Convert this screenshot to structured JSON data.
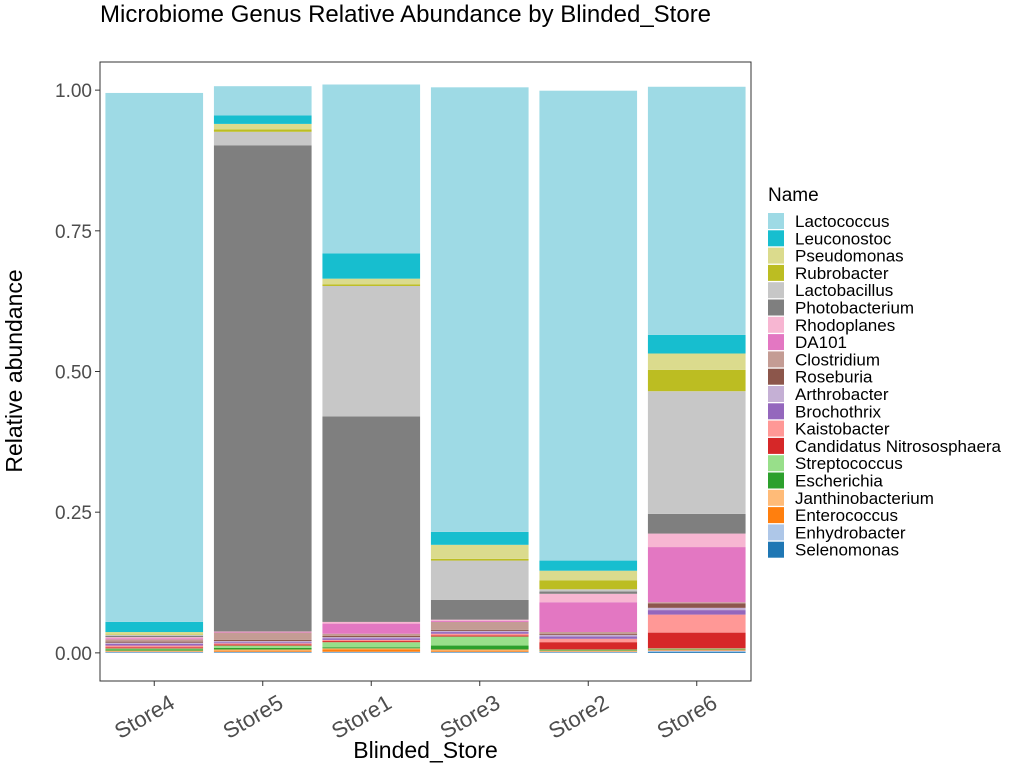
{
  "chart_data": {
    "type": "bar",
    "stacked": true,
    "title": "Microbiome Genus Relative Abundance by Blinded_Store",
    "xlabel": "Blinded_Store",
    "ylabel": "Relative abundance",
    "ylim": [
      -0.05,
      1.05
    ],
    "yticks": [
      0.0,
      0.25,
      0.5,
      0.75,
      1.0
    ],
    "ytick_labels": [
      "0.00",
      "0.25",
      "0.50",
      "0.75",
      "1.00"
    ],
    "grid": false,
    "legend": {
      "title": "Name",
      "position": "right"
    },
    "categories": [
      "Store4",
      "Store5",
      "Store1",
      "Store3",
      "Store2",
      "Store6"
    ],
    "series": [
      {
        "name": "Selenomonas",
        "color": "#1f77b4",
        "values": [
          0.001,
          0.001,
          0.001,
          0.001,
          0.001,
          0.002
        ]
      },
      {
        "name": "Enhydrobacter",
        "color": "#aec7e8",
        "values": [
          0.001,
          0.001,
          0.001,
          0.001,
          0.001,
          0.002
        ]
      },
      {
        "name": "Enterococcus",
        "color": "#ff7f0e",
        "values": [
          0.001,
          0.002,
          0.004,
          0.002,
          0.001,
          0.001
        ]
      },
      {
        "name": "Janthinobacterium",
        "color": "#ffbb78",
        "values": [
          0.001,
          0.002,
          0.002,
          0.002,
          0.001,
          0.001
        ]
      },
      {
        "name": "Escherichia",
        "color": "#2ca02c",
        "values": [
          0.002,
          0.003,
          0.002,
          0.007,
          0.001,
          0.001
        ]
      },
      {
        "name": "Streptococcus",
        "color": "#98df8a",
        "values": [
          0.002,
          0.004,
          0.009,
          0.016,
          0.001,
          0.001
        ]
      },
      {
        "name": "Candidatus Nitrososphaera",
        "color": "#d62728",
        "values": [
          0.002,
          0.002,
          0.002,
          0.002,
          0.013,
          0.028
        ]
      },
      {
        "name": "Kaistobacter",
        "color": "#ff9896",
        "values": [
          0.003,
          0.002,
          0.002,
          0.003,
          0.006,
          0.032
        ]
      },
      {
        "name": "Brochothrix",
        "color": "#9467bd",
        "values": [
          0.003,
          0.002,
          0.003,
          0.003,
          0.004,
          0.008
        ]
      },
      {
        "name": "Arthrobacter",
        "color": "#c5b0d5",
        "values": [
          0.002,
          0.002,
          0.002,
          0.002,
          0.003,
          0.004
        ]
      },
      {
        "name": "Roseburia",
        "color": "#8c564b",
        "values": [
          0.002,
          0.002,
          0.002,
          0.002,
          0.002,
          0.008
        ]
      },
      {
        "name": "Clostridium",
        "color": "#c49c94",
        "values": [
          0.004,
          0.013,
          0.004,
          0.014,
          0.003,
          0.002
        ]
      },
      {
        "name": "DA101",
        "color": "#e377c2",
        "values": [
          0.002,
          0.001,
          0.018,
          0.002,
          0.053,
          0.098
        ]
      },
      {
        "name": "Rhodoplanes",
        "color": "#f7b6d2",
        "values": [
          0.002,
          0.001,
          0.003,
          0.002,
          0.015,
          0.024
        ]
      },
      {
        "name": "Photobacterium",
        "color": "#7f7f7f",
        "values": [
          0.002,
          0.864,
          0.365,
          0.035,
          0.004,
          0.035
        ]
      },
      {
        "name": "Lactobacillus",
        "color": "#c7c7c7",
        "values": [
          0.002,
          0.024,
          0.232,
          0.07,
          0.004,
          0.218
        ]
      },
      {
        "name": "Rubrobacter",
        "color": "#bcbd22",
        "values": [
          0.001,
          0.004,
          0.003,
          0.003,
          0.016,
          0.038
        ]
      },
      {
        "name": "Pseudomonas",
        "color": "#dbdb8d",
        "values": [
          0.004,
          0.01,
          0.01,
          0.025,
          0.017,
          0.029
        ]
      },
      {
        "name": "Leuconostoc",
        "color": "#17becf",
        "values": [
          0.018,
          0.015,
          0.045,
          0.023,
          0.018,
          0.033
        ]
      },
      {
        "name": "Lactococcus",
        "color": "#9edae5",
        "values": [
          0.94,
          0.052,
          0.3,
          0.79,
          0.835,
          0.441
        ]
      }
    ]
  }
}
